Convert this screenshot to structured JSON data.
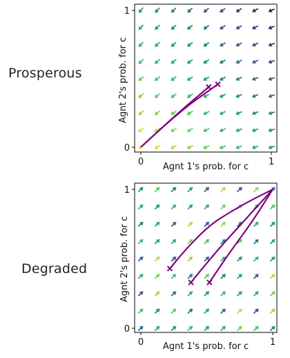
{
  "rows": [
    {
      "label": "Prosperous"
    },
    {
      "label": "Degraded"
    }
  ],
  "chart_data": [
    {
      "type": "quiver",
      "title": "",
      "xlabel": "Agnt 1's prob. for c",
      "ylabel": "Agnt 2's prob. for c",
      "xlim": [
        0,
        1
      ],
      "ylim": [
        0,
        1
      ],
      "xticks": [
        "0",
        "1"
      ],
      "yticks": [
        "0",
        "1"
      ],
      "grid": false,
      "field": "vectors point toward (0,0); color varies viridis from purple (top-right) to yellow (bottom-left)",
      "trajectories": [
        {
          "x": [
            0.0,
            0.26,
            0.52
          ],
          "y": [
            0.0,
            0.23,
            0.44
          ],
          "start_marker": "x"
        },
        {
          "x": [
            0.0,
            0.28,
            0.59
          ],
          "y": [
            0.0,
            0.25,
            0.46
          ],
          "start_marker": "x"
        }
      ],
      "trajectory_color": "#800080"
    },
    {
      "type": "quiver",
      "title": "",
      "xlabel": "Agnt 1's prob. for c",
      "ylabel": "Agnt 2's prob. for c",
      "xlim": [
        0,
        1
      ],
      "ylim": [
        0,
        1
      ],
      "xticks": [
        "0",
        "1"
      ],
      "yticks": [
        "0",
        "1"
      ],
      "grid": false,
      "field": "vectors point toward (1,1); colors mixed viridis",
      "trajectories": [
        {
          "x": [
            0.22,
            0.45,
            0.75,
            1.0
          ],
          "y": [
            0.43,
            0.7,
            0.88,
            1.0
          ],
          "start_marker": "x"
        },
        {
          "x": [
            0.38,
            0.55,
            0.77,
            1.0
          ],
          "y": [
            0.33,
            0.53,
            0.76,
            1.0
          ],
          "start_marker": "x"
        },
        {
          "x": [
            0.52,
            0.66,
            0.84,
            1.0
          ],
          "y": [
            0.33,
            0.53,
            0.76,
            1.0
          ],
          "start_marker": "x"
        }
      ],
      "trajectory_color": "#800080"
    }
  ]
}
